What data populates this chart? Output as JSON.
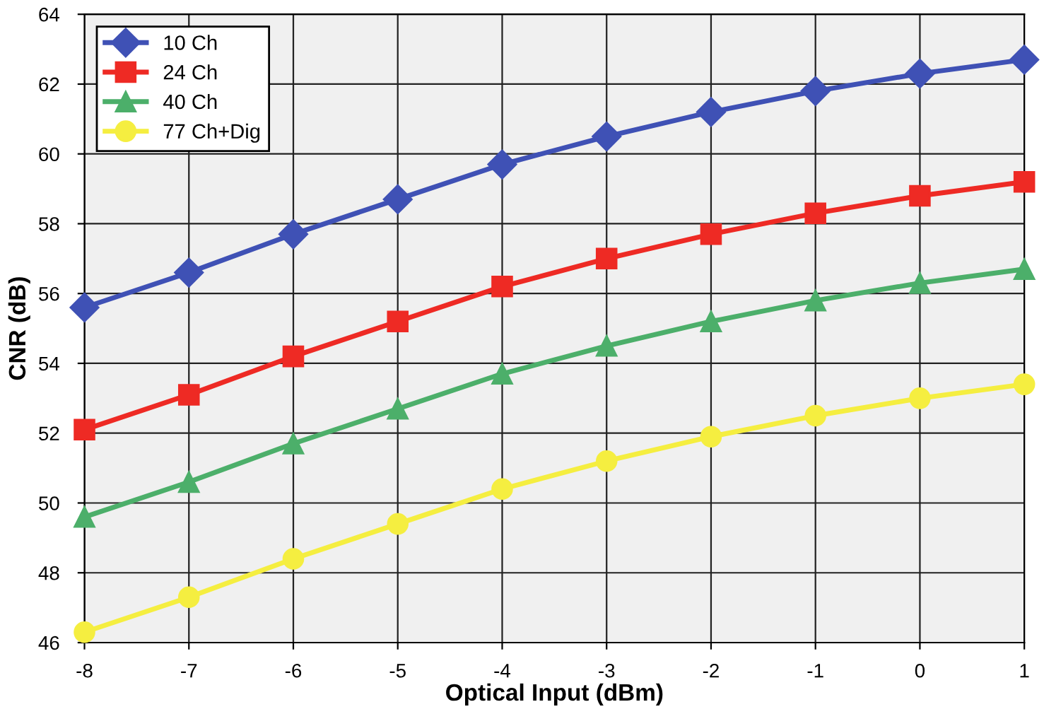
{
  "chart_data": {
    "type": "line",
    "xlabel": "Optical Input (dBm)",
    "ylabel": "CNR (dB)",
    "x": [
      -8,
      -7,
      -6,
      -5,
      -4,
      -3,
      -2,
      -1,
      0,
      1
    ],
    "xlim": [
      -8,
      1
    ],
    "xticks": [
      -8,
      -7,
      -6,
      -5,
      -4,
      -3,
      -2,
      -1,
      0,
      1
    ],
    "ylim": [
      46,
      64
    ],
    "yticks": [
      46,
      48,
      50,
      52,
      54,
      56,
      58,
      60,
      62,
      64
    ],
    "grid": true,
    "legend": "top left",
    "line_style": "solid",
    "series": [
      {
        "name": "10 Ch",
        "color": "#3f51b5",
        "marker": "diamond",
        "values": [
          55.6,
          56.6,
          57.7,
          58.7,
          59.7,
          60.5,
          61.2,
          61.8,
          62.3,
          62.7
        ]
      },
      {
        "name": "24 Ch",
        "color": "#ee2a24",
        "marker": "square",
        "values": [
          52.1,
          53.1,
          54.2,
          55.2,
          56.2,
          57.0,
          57.7,
          58.3,
          58.8,
          59.2
        ]
      },
      {
        "name": "40 Ch",
        "color": "#4caf6a",
        "marker": "triangle",
        "values": [
          49.6,
          50.6,
          51.7,
          52.7,
          53.7,
          54.5,
          55.2,
          55.8,
          56.3,
          56.7
        ]
      },
      {
        "name": "77 Ch+Dig",
        "color": "#f5ee40",
        "marker": "circle",
        "values": [
          46.3,
          47.3,
          48.4,
          49.4,
          50.4,
          51.2,
          51.9,
          52.5,
          53.0,
          53.4
        ]
      }
    ]
  }
}
